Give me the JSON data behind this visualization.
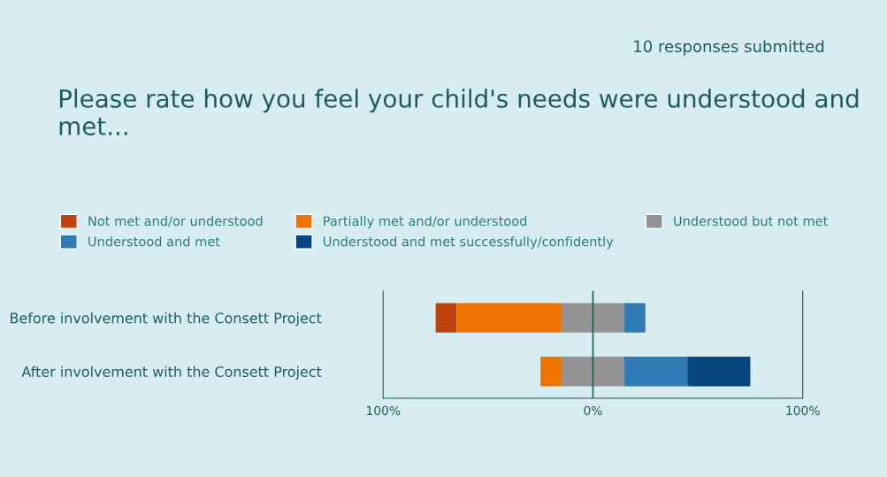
{
  "chart_data": {
    "type": "bar",
    "orientation": "horizontal",
    "title": "Please rate how you feel your child's needs were understood and met...",
    "annotations": [
      "10 responses submitted"
    ],
    "categories": [
      "Before involvement with the Consett Project",
      "After involvement with the Consett Project"
    ],
    "series": [
      {
        "name": "Not met and/or understood",
        "color": "#c0430f",
        "base": [
          -75,
          null
        ],
        "values": [
          10,
          null
        ]
      },
      {
        "name": "Partially met and/or understood",
        "color": "#ee7300",
        "base": [
          -65,
          -25
        ],
        "values": [
          50,
          10
        ]
      },
      {
        "name": "Understood but not met",
        "color": "#949494",
        "base": [
          -15,
          -15
        ],
        "values": [
          30,
          30
        ]
      },
      {
        "name": "Understood and met",
        "color": "#2e7bb6",
        "base": [
          15,
          15
        ],
        "values": [
          10,
          30
        ]
      },
      {
        "name": "Understood and met successfully/confidently",
        "color": "#07467e",
        "base": [
          null,
          45
        ],
        "values": [
          null,
          30
        ]
      }
    ],
    "xlim": [
      -100,
      100
    ],
    "xticks": [
      {
        "value": -100,
        "label": "100%"
      },
      {
        "value": 0,
        "label": "0%"
      },
      {
        "value": 100,
        "label": "100%"
      }
    ],
    "ref_lines": [
      {
        "axis": "x",
        "value": 0,
        "color": "#1e5c5a"
      }
    ],
    "legend": "top"
  }
}
